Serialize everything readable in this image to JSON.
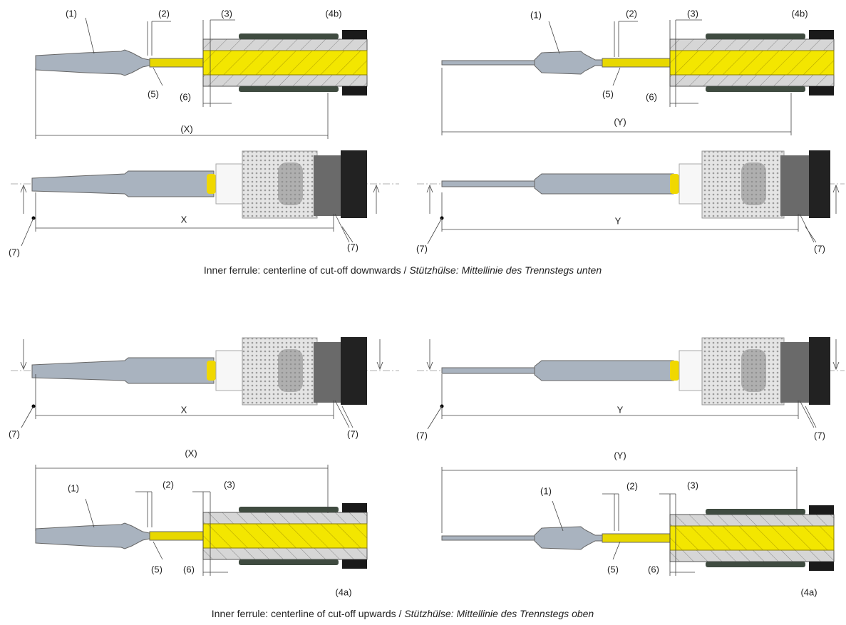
{
  "top_left_section": {
    "contact": "(1)",
    "wire_strip": "(2)",
    "jacket_strip": "(3)",
    "braid": "(4b)",
    "conductor": "(5)",
    "gap": "(6)",
    "length": "(X)"
  },
  "top_right_section": {
    "contact": "(1)",
    "wire_strip": "(2)",
    "jacket_strip": "(3)",
    "braid": "(4b)",
    "conductor": "(5)",
    "gap": "(6)",
    "length": "(Y)"
  },
  "top_left_view": {
    "ref_start": "(7)",
    "length": "X",
    "ref_end": "(7)"
  },
  "top_right_view": {
    "ref_start": "(7)",
    "length": "Y",
    "ref_end": "(7)"
  },
  "caption_1": {
    "plain": "Inner ferrule: centerline of cut-off downwards / ",
    "italic": "Stützhülse: Mittellinie des Trennstegs unten"
  },
  "bottom_left_view": {
    "ref_start": "(7)",
    "length": "X",
    "ref_end": "(7)"
  },
  "bottom_right_view": {
    "ref_start": "(7)",
    "length": "Y",
    "ref_end": "(7)"
  },
  "bottom_left_section": {
    "length": "(X)",
    "contact": "(1)",
    "wire_strip": "(2)",
    "jacket_strip": "(3)",
    "conductor": "(5)",
    "gap": "(6)",
    "braid": "(4a)"
  },
  "bottom_right_section": {
    "length": "(Y)",
    "contact": "(1)",
    "wire_strip": "(2)",
    "jacket_strip": "(3)",
    "conductor": "(5)",
    "gap": "(6)",
    "braid": "(4a)"
  },
  "caption_2": {
    "plain": "Inner ferrule: centerline of cut-off upwards / ",
    "italic": "Stützhülse: Mittellinie des Trennstegs oben"
  }
}
